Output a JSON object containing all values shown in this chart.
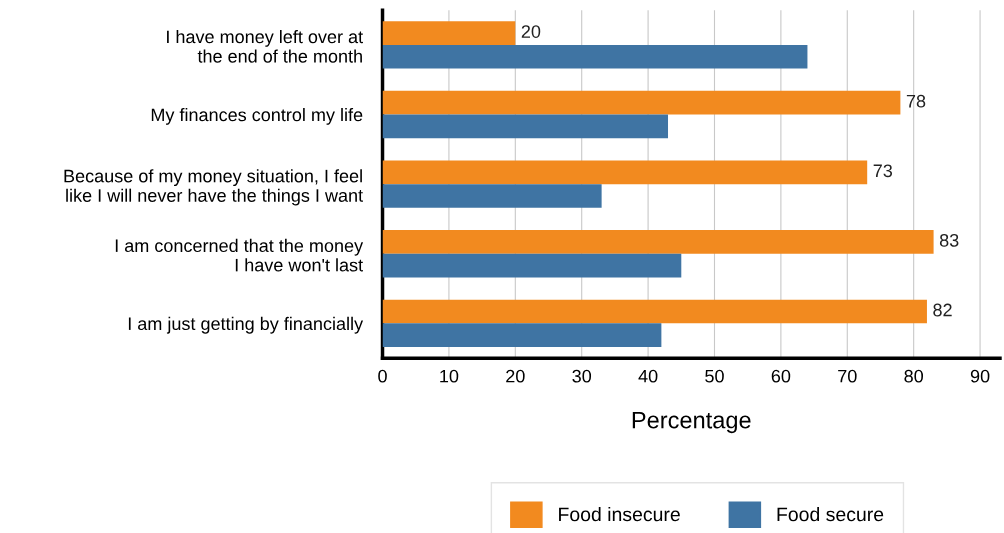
{
  "chart_data": {
    "type": "bar",
    "orientation": "horizontal",
    "categories": [
      "I have money left over at\nthe end of the month",
      "My finances control my life",
      "Because of my money situation, I feel\nlike I will never have the things I want",
      "I am concerned that the money\nI have won't last",
      "I am just getting by financially"
    ],
    "series": [
      {
        "name": "Food insecure",
        "color": "#f28a1f",
        "values": [
          20,
          78,
          73,
          83,
          82
        ],
        "value_labels": [
          "20",
          "78",
          "73",
          "83",
          "82"
        ]
      },
      {
        "name": "Food secure",
        "color": "#3f74a3",
        "values": [
          64,
          43,
          33,
          45,
          42
        ]
      }
    ],
    "xlabel": "Percentage",
    "xlim": [
      0,
      93
    ],
    "xticks": [
      0,
      10,
      20,
      30,
      40,
      50,
      60,
      70,
      80,
      90
    ],
    "grid": "x",
    "legend": "bottom"
  }
}
